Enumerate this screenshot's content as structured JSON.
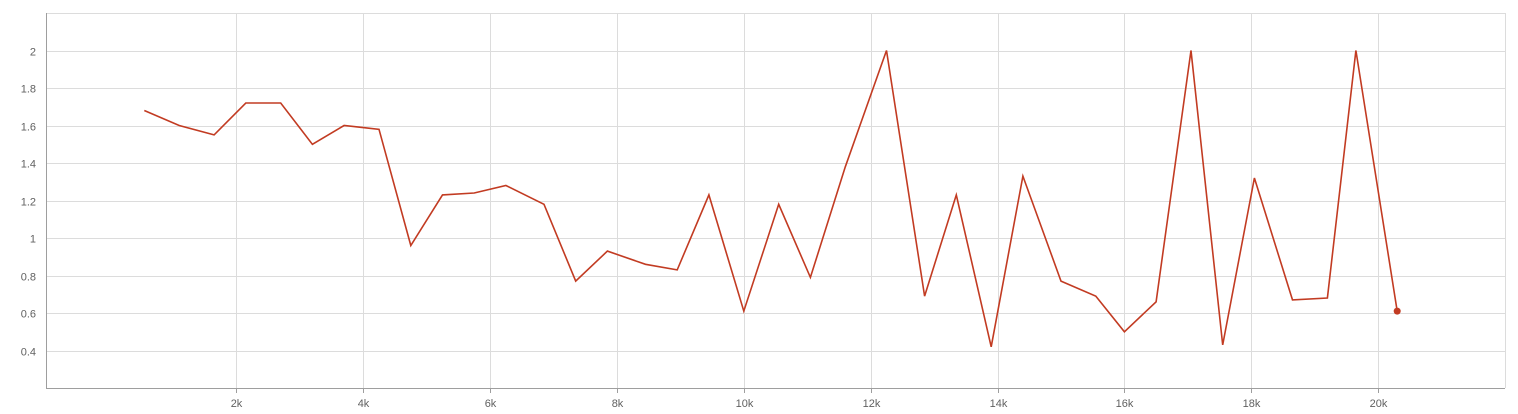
{
  "chart_data": {
    "type": "line",
    "title": "",
    "xlabel": "",
    "ylabel": "",
    "xlim": [
      -1000,
      22000
    ],
    "ylim": [
      0.2,
      2.2
    ],
    "grid": true,
    "x_ticks": [
      {
        "value": 2000,
        "label": "2k"
      },
      {
        "value": 4000,
        "label": "4k"
      },
      {
        "value": 6000,
        "label": "6k"
      },
      {
        "value": 8000,
        "label": "8k"
      },
      {
        "value": 10000,
        "label": "10k"
      },
      {
        "value": 12000,
        "label": "12k"
      },
      {
        "value": 14000,
        "label": "14k"
      },
      {
        "value": 16000,
        "label": "16k"
      },
      {
        "value": 18000,
        "label": "18k"
      },
      {
        "value": 20000,
        "label": "20k"
      }
    ],
    "y_ticks": [
      {
        "value": 0.4,
        "label": "0.4"
      },
      {
        "value": 0.6,
        "label": "0.6"
      },
      {
        "value": 0.8,
        "label": "0.8"
      },
      {
        "value": 1.0,
        "label": "1"
      },
      {
        "value": 1.2,
        "label": "1.2"
      },
      {
        "value": 1.4,
        "label": "1.4"
      },
      {
        "value": 1.6,
        "label": "1.6"
      },
      {
        "value": 1.8,
        "label": "1.8"
      },
      {
        "value": 2.0,
        "label": "2"
      }
    ],
    "series": [
      {
        "color": "#c23b22",
        "points": [
          [
            550,
            1.68
          ],
          [
            1100,
            1.6
          ],
          [
            1650,
            1.55
          ],
          [
            2150,
            1.72
          ],
          [
            2700,
            1.72
          ],
          [
            3200,
            1.5
          ],
          [
            3700,
            1.6
          ],
          [
            4250,
            1.58
          ],
          [
            4750,
            0.96
          ],
          [
            5250,
            1.23
          ],
          [
            5750,
            1.24
          ],
          [
            6250,
            1.28
          ],
          [
            6850,
            1.18
          ],
          [
            7350,
            0.77
          ],
          [
            7850,
            0.93
          ],
          [
            8450,
            0.86
          ],
          [
            8950,
            0.83
          ],
          [
            9450,
            1.23
          ],
          [
            10000,
            0.61
          ],
          [
            10550,
            1.18
          ],
          [
            11050,
            0.79
          ],
          [
            11600,
            1.38
          ],
          [
            12250,
            2.0
          ],
          [
            12850,
            0.69
          ],
          [
            13350,
            1.23
          ],
          [
            13900,
            0.42
          ],
          [
            14400,
            1.33
          ],
          [
            15000,
            0.77
          ],
          [
            15550,
            0.69
          ],
          [
            16000,
            0.5
          ],
          [
            16500,
            0.66
          ],
          [
            17050,
            2.0
          ],
          [
            17550,
            0.43
          ],
          [
            18050,
            1.32
          ],
          [
            18650,
            0.67
          ],
          [
            19200,
            0.68
          ],
          [
            19650,
            2.0
          ],
          [
            20300,
            0.61
          ]
        ]
      }
    ]
  }
}
